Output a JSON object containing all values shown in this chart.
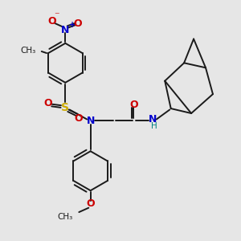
{
  "background_color": "#e6e6e6",
  "bond_color": "#1a1a1a",
  "bond_width": 1.4,
  "figsize": [
    3.0,
    3.0
  ],
  "dpi": 100,
  "colors": {
    "C": "#1a1a1a",
    "N": "#0000cc",
    "O": "#cc0000",
    "S": "#ccaa00",
    "H": "#008080",
    "plus": "#0000cc"
  },
  "xlim": [
    0,
    10
  ],
  "ylim": [
    0,
    10
  ]
}
